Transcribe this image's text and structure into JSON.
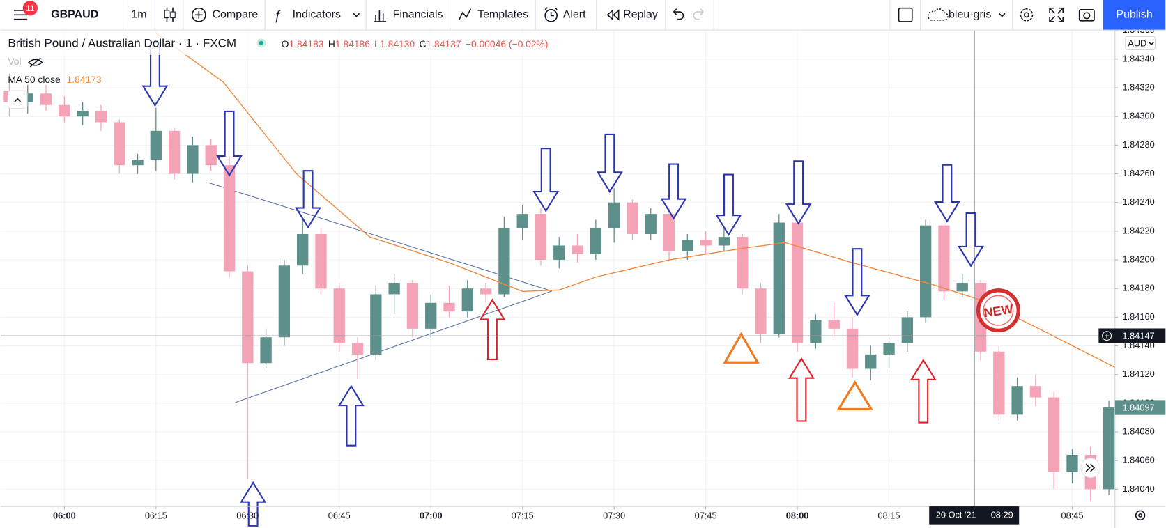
{
  "toolbar": {
    "notifications": "11",
    "symbol": "GBPAUD",
    "interval": "1m",
    "compare": "Compare",
    "indicators": "Indicators",
    "financials": "Financials",
    "templates": "Templates",
    "alert": "Alert",
    "replay": "Replay",
    "layout": "bleu-gris",
    "publish": "Publish"
  },
  "legend": {
    "title": "British Pound / Australian Dollar · 1 · FXCM",
    "o_label": "O",
    "open": "1.84183",
    "h_label": "H",
    "high": "1.84186",
    "l_label": "L",
    "low": "1.84130",
    "c_label": "C",
    "close": "1.84137",
    "change": "−0.00046 (−0.02%)",
    "vol": "Vol",
    "ma_name": "MA 50 close",
    "ma_value": "1.84173"
  },
  "currency": "AUD",
  "badge": "NEW",
  "chart_data": {
    "type": "candlestick",
    "x": [
      -9,
      -6,
      -3,
      0,
      3,
      6,
      9,
      12,
      15,
      18,
      21,
      24,
      27,
      30,
      33,
      36,
      39,
      42,
      45,
      48,
      51,
      54,
      57,
      60,
      63,
      66,
      69,
      72,
      75,
      78,
      81,
      84,
      87,
      90,
      93,
      96,
      99,
      102,
      105,
      108,
      111,
      114,
      117,
      120,
      123,
      126,
      129,
      132,
      135,
      138,
      141,
      144,
      147,
      150,
      153,
      156,
      159,
      162,
      165,
      168,
      171
    ],
    "open": [
      1.84318,
      1.8431,
      1.84316,
      1.84308,
      1.843,
      1.84304,
      1.84296,
      1.84266,
      1.8427,
      1.8429,
      1.8426,
      1.8428,
      1.84266,
      1.84192,
      1.84128,
      1.84146,
      1.84196,
      1.84218,
      1.8418,
      1.84142,
      1.84134,
      1.84176,
      1.84184,
      1.84152,
      1.8417,
      1.84164,
      1.8418,
      1.84176,
      1.84222,
      1.84232,
      1.842,
      1.8421,
      1.84204,
      1.84222,
      1.8424,
      1.84218,
      1.84232,
      1.84206,
      1.84214,
      1.8421,
      1.84216,
      1.8418,
      1.84148,
      1.84226,
      1.84142,
      1.84158,
      1.84152,
      1.84124,
      1.84134,
      1.84142,
      1.8416,
      1.84224,
      1.84178,
      1.84184,
      1.84136,
      1.84092,
      1.84112,
      1.84104,
      1.84052,
      1.84064,
      1.8404
    ],
    "high": [
      1.8433,
      1.84322,
      1.84322,
      1.84314,
      1.8431,
      1.84308,
      1.84298,
      1.84274,
      1.84306,
      1.84292,
      1.84286,
      1.84284,
      1.84272,
      1.84196,
      1.84152,
      1.842,
      1.84228,
      1.84222,
      1.84184,
      1.84146,
      1.84182,
      1.8419,
      1.84186,
      1.84176,
      1.84182,
      1.84186,
      1.84184,
      1.8423,
      1.84238,
      1.84236,
      1.84216,
      1.84218,
      1.84228,
      1.8425,
      1.84242,
      1.84236,
      1.84236,
      1.84218,
      1.8422,
      1.84222,
      1.84218,
      1.84184,
      1.84232,
      1.84228,
      1.84162,
      1.8417,
      1.8416,
      1.8414,
      1.84146,
      1.84164,
      1.84228,
      1.84226,
      1.8419,
      1.84186,
      1.8414,
      1.84118,
      1.8412,
      1.84108,
      1.84068,
      1.8407,
      1.84102
    ],
    "low": [
      1.843,
      1.84302,
      1.84304,
      1.84296,
      1.84294,
      1.8429,
      1.8426,
      1.8426,
      1.84262,
      1.84256,
      1.84254,
      1.84262,
      1.84188,
      1.84047,
      1.84124,
      1.8414,
      1.8419,
      1.84176,
      1.84136,
      1.84117,
      1.8413,
      1.84162,
      1.84146,
      1.84146,
      1.8416,
      1.8416,
      1.8417,
      1.84174,
      1.84214,
      1.84196,
      1.84194,
      1.84198,
      1.842,
      1.84212,
      1.84214,
      1.84214,
      1.842,
      1.842,
      1.84204,
      1.84206,
      1.84176,
      1.84142,
      1.84146,
      1.84136,
      1.84138,
      1.84146,
      1.84118,
      1.84116,
      1.84124,
      1.84136,
      1.84156,
      1.84172,
      1.84174,
      1.8413,
      1.84088,
      1.84088,
      1.84098,
      1.8404,
      1.84044,
      1.84032,
      1.84036
    ],
    "close": [
      1.8431,
      1.84316,
      1.84308,
      1.843,
      1.84304,
      1.84296,
      1.84266,
      1.8427,
      1.8429,
      1.8426,
      1.8428,
      1.84266,
      1.84192,
      1.84128,
      1.84146,
      1.84196,
      1.84218,
      1.8418,
      1.84142,
      1.84134,
      1.84176,
      1.84184,
      1.84152,
      1.8417,
      1.84164,
      1.8418,
      1.84176,
      1.84222,
      1.84232,
      1.842,
      1.8421,
      1.84204,
      1.84222,
      1.8424,
      1.84218,
      1.84232,
      1.84206,
      1.84214,
      1.8421,
      1.84216,
      1.8418,
      1.84148,
      1.84226,
      1.84142,
      1.84158,
      1.84152,
      1.84124,
      1.84134,
      1.84142,
      1.8416,
      1.84224,
      1.84178,
      1.84184,
      1.84136,
      1.84092,
      1.84112,
      1.84104,
      1.84052,
      1.84064,
      1.8404,
      1.84097
    ],
    "up_color": "#5d8f8b",
    "down_color": "#f4a3b6",
    "ma": {
      "x": [
        15,
        26,
        38,
        50,
        63,
        75,
        81,
        87,
        99,
        111,
        118,
        129,
        142,
        150,
        160,
        172
      ],
      "values": [
        1.84358,
        1.84324,
        1.8426,
        1.84216,
        1.84198,
        1.84178,
        1.84179,
        1.84188,
        1.842,
        1.84208,
        1.84212,
        1.84198,
        1.84183,
        1.84172,
        1.84151,
        1.84125
      ],
      "color": "#f0883e"
    },
    "xlim": [
      -10.46,
      172
    ],
    "xticks": [
      {
        "value": 0,
        "label": "06:00"
      },
      {
        "value": 15,
        "label": "06:15"
      },
      {
        "value": 30,
        "label": "06:30"
      },
      {
        "value": 45,
        "label": "06:45"
      },
      {
        "value": 60,
        "label": "07:00"
      },
      {
        "value": 75,
        "label": "07:15"
      },
      {
        "value": 90,
        "label": "07:30"
      },
      {
        "value": 105,
        "label": "07:45"
      },
      {
        "value": 120,
        "label": "08:00"
      },
      {
        "value": 135,
        "label": "08:15"
      },
      {
        "value": 165,
        "label": "08:45"
      }
    ],
    "ylim": [
      1.84028,
      1.8436
    ],
    "yticks": [
      {
        "value": 1.8404,
        "label": "1.84040"
      },
      {
        "value": 1.8406,
        "label": "1.84060"
      },
      {
        "value": 1.8408,
        "label": "1.84080"
      },
      {
        "value": 1.841,
        "label": "1.84100"
      },
      {
        "value": 1.8412,
        "label": "1.84120"
      },
      {
        "value": 1.8414,
        "label": "1.84140"
      },
      {
        "value": 1.8416,
        "label": "1.84160"
      },
      {
        "value": 1.8418,
        "label": "1.84180"
      },
      {
        "value": 1.842,
        "label": "1.84200"
      },
      {
        "value": 1.8422,
        "label": "1.84220"
      },
      {
        "value": 1.8424,
        "label": "1.84240"
      },
      {
        "value": 1.8426,
        "label": "1.84260"
      },
      {
        "value": 1.8428,
        "label": "1.84280"
      },
      {
        "value": 1.843,
        "label": "1.84300"
      },
      {
        "value": 1.8432,
        "label": "1.84320"
      },
      {
        "value": 1.8434,
        "label": "1.84340"
      },
      {
        "value": 1.8436,
        "label": "1.84360"
      }
    ],
    "price_lines": [
      {
        "value": 1.84147,
        "label": "1.84147"
      },
      {
        "value": 1.84097,
        "label": "1.84097"
      }
    ],
    "crosshair": {
      "x": 149,
      "date": "20 Oct '21",
      "time": "08:29"
    },
    "grid": true
  }
}
